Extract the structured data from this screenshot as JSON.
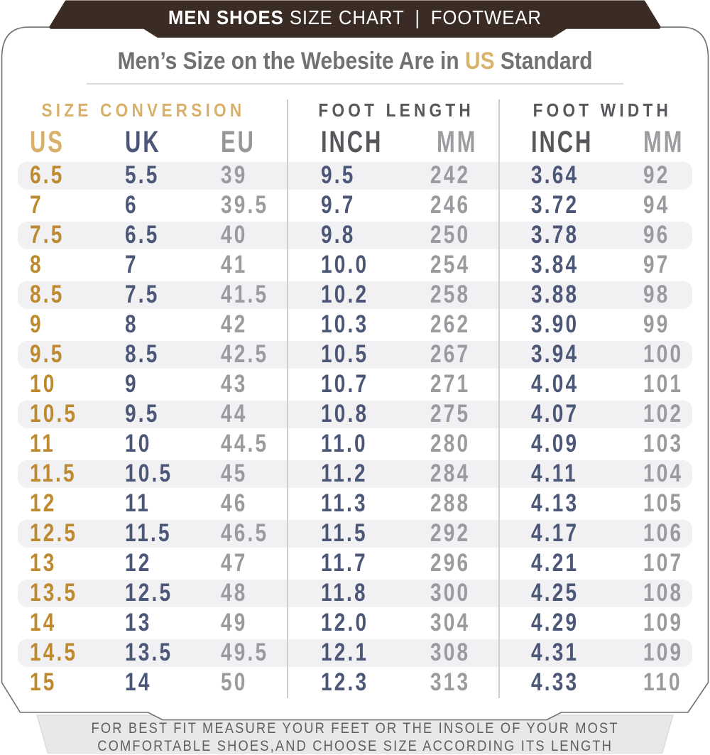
{
  "colors": {
    "banner_brown": "#3a2b24",
    "card_border": "#6f6f6f",
    "stripe": "#f1f1f4",
    "footer_bg": "#e8e8e6",
    "gold_header": "#d9b06a",
    "gold_data": "#bd8a2f",
    "navy": "#4c5777",
    "gray": "#9b9b9f",
    "dark_gray": "#56575b"
  },
  "banner": {
    "title_bold": "MEN SHOES",
    "title_rest": "SIZE CHART",
    "separator": "|",
    "right": "FOOTWEAR"
  },
  "heading": {
    "prefix": "Men’s Size on the Webesite Are in ",
    "highlight": "US",
    "suffix": " Standard"
  },
  "table": {
    "groups": [
      {
        "label": "SIZE CONVERSION"
      },
      {
        "label": "FOOT LENGTH"
      },
      {
        "label": "FOOT WIDTH"
      }
    ],
    "columns": [
      "US",
      "UK",
      "EU",
      "INCH",
      "MM",
      "INCH",
      "MM"
    ],
    "rows": [
      [
        "6.5",
        "5.5",
        "39",
        "9.5",
        "242",
        "3.64",
        "92"
      ],
      [
        "7",
        "6",
        "39.5",
        "9.7",
        "246",
        "3.72",
        "94"
      ],
      [
        "7.5",
        "6.5",
        "40",
        "9.8",
        "250",
        "3.78",
        "96"
      ],
      [
        "8",
        "7",
        "41",
        "10.0",
        "254",
        "3.84",
        "97"
      ],
      [
        "8.5",
        "7.5",
        "41.5",
        "10.2",
        "258",
        "3.88",
        "98"
      ],
      [
        "9",
        "8",
        "42",
        "10.3",
        "262",
        "3.90",
        "99"
      ],
      [
        "9.5",
        "8.5",
        "42.5",
        "10.5",
        "267",
        "3.94",
        "100"
      ],
      [
        "10",
        "9",
        "43",
        "10.7",
        "271",
        "4.04",
        "101"
      ],
      [
        "10.5",
        "9.5",
        "44",
        "10.8",
        "275",
        "4.07",
        "102"
      ],
      [
        "11",
        "10",
        "44.5",
        "11.0",
        "280",
        "4.09",
        "103"
      ],
      [
        "11.5",
        "10.5",
        "45",
        "11.2",
        "284",
        "4.11",
        "104"
      ],
      [
        "12",
        "11",
        "46",
        "11.3",
        "288",
        "4.13",
        "105"
      ],
      [
        "12.5",
        "11.5",
        "46.5",
        "11.5",
        "292",
        "4.17",
        "106"
      ],
      [
        "13",
        "12",
        "47",
        "11.7",
        "296",
        "4.21",
        "107"
      ],
      [
        "13.5",
        "12.5",
        "48",
        "11.8",
        "300",
        "4.25",
        "108"
      ],
      [
        "14",
        "13",
        "49",
        "12.0",
        "304",
        "4.29",
        "109"
      ],
      [
        "14.5",
        "13.5",
        "49.5",
        "12.1",
        "308",
        "4.31",
        "109"
      ],
      [
        "15",
        "14",
        "50",
        "12.3",
        "313",
        "4.33",
        "110"
      ]
    ]
  },
  "footer": {
    "line1": "FOR BEST FIT MEASURE YOUR FEET OR THE INSOLE OF YOUR MOST",
    "line2": "COMFORTABLE SHOES,AND CHOOSE SIZE ACCORDING ITS LENGTH"
  }
}
